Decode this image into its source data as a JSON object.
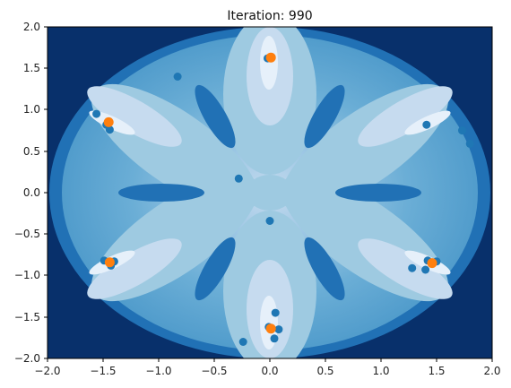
{
  "chart_data": {
    "type": "scatter",
    "title": "Iteration: 990",
    "xlabel": "",
    "ylabel": "",
    "xlim": [
      -2.0,
      2.0
    ],
    "ylim": [
      -2.0,
      2.0
    ],
    "xticks": [
      "−2.0",
      "−1.5",
      "−1.0",
      "−0.5",
      "0.0",
      "0.5",
      "1.0",
      "1.5",
      "2.0"
    ],
    "yticks": [
      "2.0",
      "1.5",
      "1.0",
      "0.5",
      "0.0",
      "−0.5",
      "−1.0",
      "−1.5",
      "−2.0"
    ],
    "grid": false,
    "background": "filled contour",
    "colors": {
      "contour_levels": [
        "#08306b",
        "#2171b5",
        "#4292c6",
        "#6baed6",
        "#9ecae1",
        "#c6dbef",
        "#e6f0fa"
      ],
      "particles": "#1f77b4",
      "centers": "#ff7f0e"
    },
    "series": [
      {
        "values": [
          {
            "x": -0.02,
            "y": 1.62
          },
          {
            "x": -0.83,
            "y": 1.4
          },
          {
            "x": -1.56,
            "y": 0.95
          },
          {
            "x": -1.47,
            "y": 0.82
          },
          {
            "x": -1.44,
            "y": 0.76
          },
          {
            "x": -0.28,
            "y": 0.17
          },
          {
            "x": 1.41,
            "y": 0.82
          },
          {
            "x": 1.73,
            "y": 0.75
          },
          {
            "x": 1.8,
            "y": 0.59
          },
          {
            "x": 0.0,
            "y": -0.34
          },
          {
            "x": -1.49,
            "y": -0.82
          },
          {
            "x": -1.43,
            "y": -0.88
          },
          {
            "x": -1.4,
            "y": -0.83
          },
          {
            "x": 1.28,
            "y": -0.91
          },
          {
            "x": 1.4,
            "y": -0.93
          },
          {
            "x": 1.42,
            "y": -0.82
          },
          {
            "x": 1.5,
            "y": -0.83
          },
          {
            "x": 0.05,
            "y": -1.45
          },
          {
            "x": 0.08,
            "y": -1.65
          },
          {
            "x": 0.04,
            "y": -1.76
          },
          {
            "x": -0.24,
            "y": -1.8
          },
          {
            "x": -0.01,
            "y": -1.62
          }
        ]
      },
      {
        "values": [
          {
            "x": 0.01,
            "y": 1.63
          },
          {
            "x": -1.45,
            "y": 0.85
          },
          {
            "x": -1.44,
            "y": -0.84
          },
          {
            "x": 1.46,
            "y": -0.85
          },
          {
            "x": 0.01,
            "y": -1.64
          }
        ]
      }
    ]
  }
}
